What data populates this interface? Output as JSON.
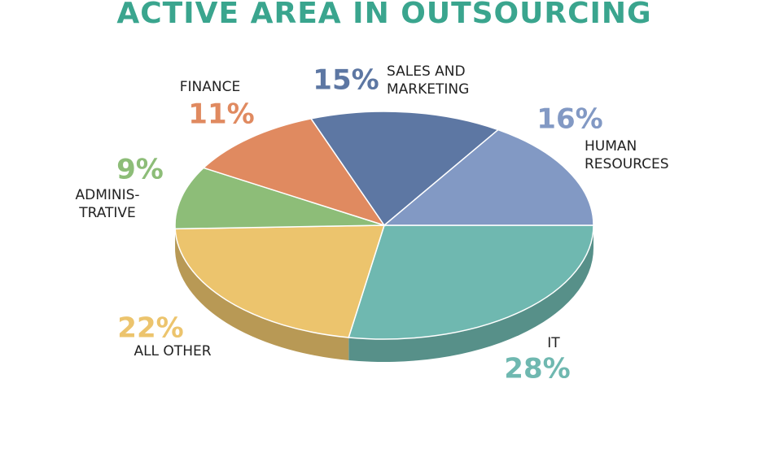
{
  "chart_data": {
    "type": "pie",
    "title": "ACTIVE AREA IN OUTSOURCING",
    "categories": [
      "IT",
      "ALL OTHER",
      "ADMINIS-\nTRATIVE",
      "FINANCE",
      "SALES AND\nMARKETING",
      "HUMAN\nRESOURCES"
    ],
    "values": [
      28,
      22,
      9,
      11,
      15,
      16
    ],
    "value_labels": [
      "28%",
      "22%",
      "9%",
      "11%",
      "15%",
      "16%"
    ],
    "colors": [
      "#6fb8b0",
      "#ecc46d",
      "#8dbd78",
      "#e08a60",
      "#5d77a3",
      "#8299c4"
    ]
  }
}
